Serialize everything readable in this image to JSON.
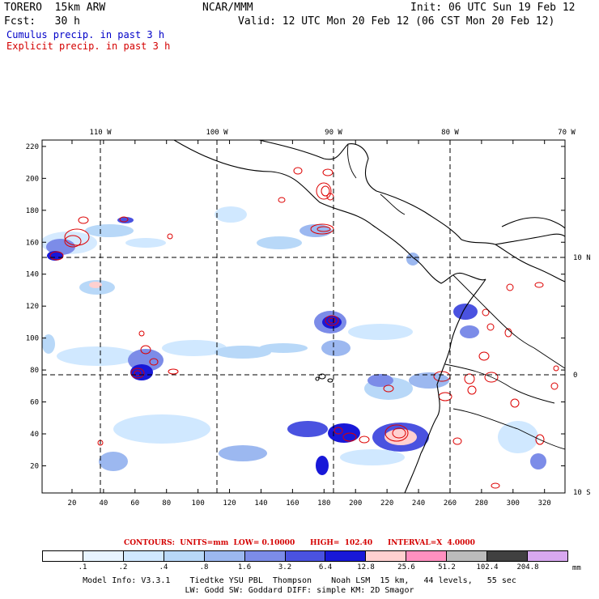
{
  "header": {
    "model": "TORERO  15km ARW",
    "org": "NCAR/MMM",
    "init": "Init: 06 UTC Sun 19 Feb 12",
    "fcst": "Fcst:   30 h",
    "valid": "Valid: 12 UTC Mon 20 Feb 12 (06 CST Mon 20 Feb 12)",
    "field_cumulus": "Cumulus precip. in past 3 h",
    "field_explicit": "Explicit precip. in past 3 h"
  },
  "colors": {
    "cumulus_text": "#0000c8",
    "explicit_text": "#d40000",
    "land_line": "#000000",
    "grid_line": "#000000",
    "explicit_contour": "#dd0000"
  },
  "map": {
    "lon_labels": [
      "110 W",
      "100 W",
      "90 W",
      "80 W",
      "70 W"
    ],
    "lat_labels": [
      "10 N",
      "0",
      "10 S"
    ],
    "x_ticks": [
      "20",
      "40",
      "60",
      "80",
      "100",
      "120",
      "140",
      "160",
      "180",
      "200",
      "220",
      "240",
      "260",
      "280",
      "300",
      "320"
    ],
    "y_ticks": [
      "20",
      "40",
      "60",
      "80",
      "100",
      "120",
      "140",
      "160",
      "180",
      "200",
      "220"
    ],
    "x_range": [
      1,
      333
    ],
    "y_range": [
      3,
      224
    ]
  },
  "contours_line": "CONTOURS:  UNITS=mm  LOW= 0.10000      HIGH=  102.40      INTERVAL=X  4.0000",
  "colorbar": {
    "labels": [
      ".1",
      ".2",
      ".4",
      ".8",
      "1.6",
      "3.2",
      "6.4",
      "12.8",
      "25.6",
      "51.2",
      "102.4",
      "204.8"
    ],
    "colors": [
      "#ffffff",
      "#e8f4ff",
      "#d0e8ff",
      "#b8d8f8",
      "#9cb8f0",
      "#7c8ce8",
      "#4a52e0",
      "#1818d8",
      "#ffd0d0",
      "#ff90c0",
      "#bcbcbc",
      "#404040",
      "#d8a8f0"
    ],
    "units": "mm"
  },
  "model_info": {
    "line1": "Model Info: V3.3.1    Tiedtke YSU PBL  Thompson    Noah LSM  15 km,   44 levels,   55 sec",
    "line2": "LW: Godd SW: Goddard DIFF: simple KM: 2D Smagor"
  }
}
